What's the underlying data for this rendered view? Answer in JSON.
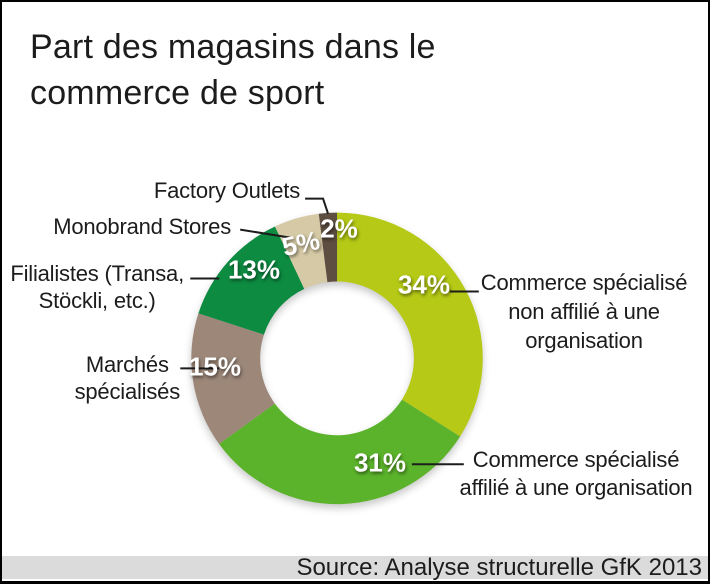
{
  "title": "Part des magasins dans le\ncommerce de sport",
  "source_bar": {
    "text": "Source: Analyse structurelle GfK 2013"
  },
  "chart_data": {
    "type": "pie",
    "subtype": "donut",
    "title": "Part des magasins dans le commerce de sport",
    "unit": "percent",
    "direction": "clockwise",
    "start_angle_deg": 0,
    "hole_ratio": 0.53,
    "segments": [
      {
        "label": "Commerce spécialisé non affilié à une organisation",
        "value": 34,
        "pct_label": "34%",
        "color": "#b5c916"
      },
      {
        "label": "Commerce spécialisé affilié à une organisation",
        "value": 31,
        "pct_label": "31%",
        "color": "#5bb32b"
      },
      {
        "label": "Marchés spécialisés",
        "value": 15,
        "pct_label": "15%",
        "color": "#9c8779"
      },
      {
        "label": "Filialistes (Transa, Stöckli, etc.)",
        "value": 13,
        "pct_label": "13%",
        "color": "#0d8b41"
      },
      {
        "label": "Monobrand Stores",
        "value": 5,
        "pct_label": "5%",
        "color": "#d6caa6"
      },
      {
        "label": "Factory Outlets",
        "value": 2,
        "pct_label": "2%",
        "color": "#5e4e41"
      }
    ]
  },
  "callouts": {
    "factory_outlets": "Factory Outlets",
    "monobrand_stores": "Monobrand Stores",
    "filialistes": "Filialistes (Transa,\nStöckli, etc.)",
    "marches_specialises": "Marchés\nspécialisés",
    "non_affilie": "Commerce spécialisé\nnon affilié à une\norganisation",
    "affilie": "Commerce spécialisé\naffilié à une organisation"
  }
}
